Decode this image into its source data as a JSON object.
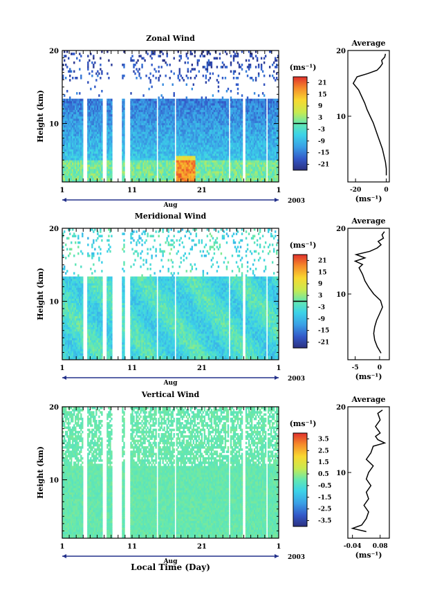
{
  "figure": {
    "xlabel": "Local Time (Day)",
    "colorbar_unit": "(ms⁻¹)",
    "month_label": "Aug",
    "year_label": "2003",
    "average_title": "Average",
    "average_unit": "(ms⁻¹)"
  },
  "chart_data": [
    {
      "type": "heatmap",
      "title": "Zonal Wind",
      "ylabel": "Height (km)",
      "xlim": [
        1,
        32
      ],
      "ylim": [
        2,
        20
      ],
      "x_ticks": [
        "1",
        "11",
        "21",
        "1"
      ],
      "y_ticks": [
        "10",
        "20"
      ],
      "colorbar": {
        "ticks": [
          "21",
          "15",
          "9",
          "3",
          "-3",
          "-9",
          "-15",
          "-21"
        ],
        "range": [
          -24,
          24
        ],
        "zero_line": true
      },
      "average": {
        "xlim": [
          -25,
          2
        ],
        "x_ticks": [
          "-20",
          "0"
        ],
        "ylim": [
          0,
          20
        ],
        "y_ticks": [
          "10",
          "20"
        ],
        "profile": {
          "height": [
            1,
            2,
            3,
            4,
            5,
            6,
            7,
            8,
            9,
            10,
            11,
            12,
            13,
            14,
            15,
            16,
            16.5,
            17,
            17.5,
            18,
            18.5,
            19,
            19.5
          ],
          "value": [
            0,
            0,
            -0.5,
            -1.5,
            -2.5,
            -4,
            -5.5,
            -7,
            -8.5,
            -10.5,
            -12.5,
            -14,
            -16,
            -18,
            -21.5,
            -19,
            -12,
            -6,
            -4,
            -2.5,
            -3,
            -1,
            -0.5
          ]
        }
      }
    },
    {
      "type": "heatmap",
      "title": "Meridional Wind",
      "ylabel": "Height (km)",
      "xlim": [
        1,
        32
      ],
      "ylim": [
        2,
        20
      ],
      "x_ticks": [
        "1",
        "11",
        "21",
        "1"
      ],
      "y_ticks": [
        "10",
        "20"
      ],
      "colorbar": {
        "ticks": [
          "21",
          "15",
          "9",
          "3",
          "-3",
          "-9",
          "-15",
          "-21"
        ],
        "range": [
          -24,
          24
        ],
        "zero_line": true
      },
      "average": {
        "xlim": [
          -6.5,
          2
        ],
        "x_ticks": [
          "-5",
          "0"
        ],
        "ylim": [
          0,
          20
        ],
        "y_ticks": [
          "10",
          "20"
        ],
        "profile": {
          "height": [
            1,
            2,
            3,
            4,
            5,
            6,
            7,
            8,
            9,
            10,
            11,
            12,
            13,
            14,
            14.5,
            15,
            15.5,
            16,
            16.5,
            17,
            17.5,
            18,
            18.5,
            19,
            19.5
          ],
          "value": [
            0.3,
            -0.5,
            -1,
            -1.2,
            -1,
            -0.6,
            0,
            0.6,
            0.2,
            -1.2,
            -2.2,
            -3,
            -3.5,
            -4.2,
            -3.5,
            -5,
            -3,
            -4.8,
            -2,
            -0.5,
            0.3,
            -0.3,
            0.8,
            0.5,
            1
          ]
        }
      }
    },
    {
      "type": "heatmap",
      "title": "Vertical Wind",
      "ylabel": "Height (km)",
      "xlim": [
        1,
        32
      ],
      "ylim": [
        2,
        20
      ],
      "x_ticks": [
        "1",
        "11",
        "21",
        "1"
      ],
      "y_ticks": [
        "10",
        "20"
      ],
      "colorbar": {
        "ticks": [
          "3.5",
          "2.5",
          "1.5",
          "0.5",
          "-0.5",
          "-1.5",
          "-2.5",
          "-3.5"
        ],
        "range": [
          -4,
          4
        ],
        "zero_line": false
      },
      "average": {
        "xlim": [
          -0.06,
          0.12
        ],
        "x_ticks": [
          "-0.04",
          "0.08"
        ],
        "ylim": [
          0,
          20
        ],
        "y_ticks": [
          "10",
          "20"
        ],
        "profile": {
          "height": [
            1,
            1.5,
            2,
            3,
            4,
            5,
            6,
            7,
            8,
            9,
            10,
            11,
            12,
            13,
            14,
            14.5,
            15,
            15.5,
            16,
            17,
            18,
            19,
            19.5
          ],
          "value": [
            0.02,
            -0.04,
            0,
            0.02,
            0.03,
            0.01,
            0.03,
            0.02,
            0.04,
            0.02,
            0.03,
            0.05,
            0.02,
            0.04,
            0.05,
            0.1,
            0.07,
            0.06,
            0.08,
            0.06,
            0.08,
            0.07,
            0.09
          ]
        }
      }
    }
  ]
}
